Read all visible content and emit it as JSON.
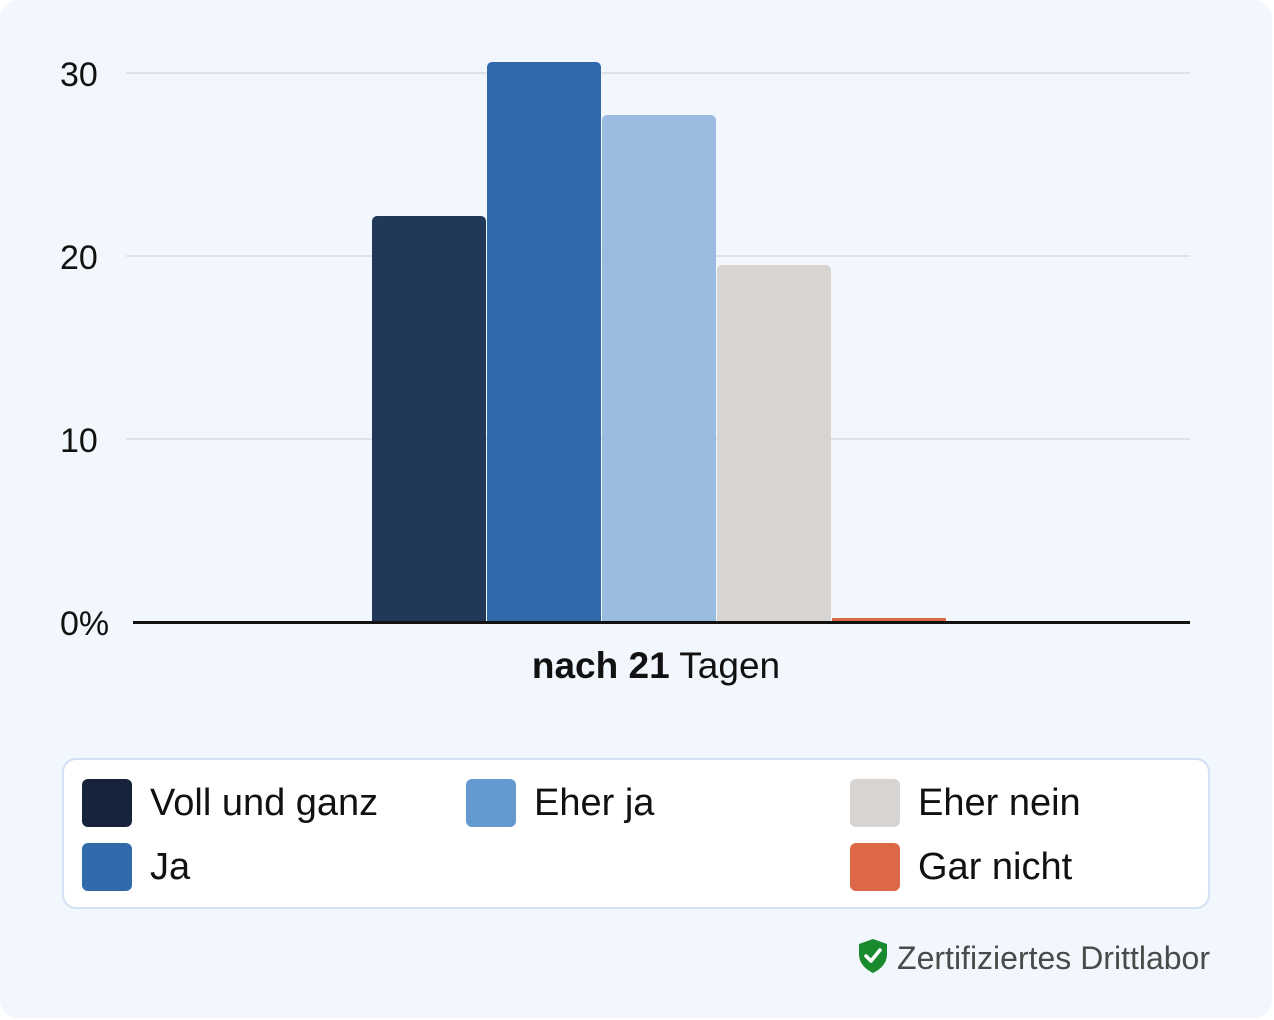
{
  "chart_data": {
    "type": "bar",
    "title": "",
    "categories": [
      "nach 21 Tagen"
    ],
    "xlabel": "nach 21 Tagen",
    "xlabel_parts": {
      "bold": "nach 21",
      "regular": "Tagen"
    },
    "ylabel": "",
    "ylim": [
      0,
      30
    ],
    "yticks": [
      "0%",
      "10",
      "20",
      "30"
    ],
    "grid": true,
    "legend_position": "bottom",
    "series": [
      {
        "name": "Voll und ganz",
        "values": [
          22.2
        ],
        "color": "#213858",
        "legend_color": "#16233b"
      },
      {
        "name": "Ja",
        "values": [
          30.6
        ],
        "color": "#316aab",
        "legend_color": "#316aab"
      },
      {
        "name": "Eher ja",
        "values": [
          27.7
        ],
        "color": "#9bbce1",
        "legend_color": "#6399cf"
      },
      {
        "name": "Eher nein",
        "values": [
          19.5
        ],
        "color": "#d7d4d1",
        "legend_color": "#d7d4d1"
      },
      {
        "name": "Gar nicht",
        "values": [
          0.2
        ],
        "color": "#dc6848",
        "legend_color": "#dc6848"
      }
    ]
  },
  "legend": {
    "items": [
      {
        "label": "Voll und ganz",
        "color": "#16233b"
      },
      {
        "label": "Ja",
        "color": "#316aab"
      },
      {
        "label": "Eher ja",
        "color": "#6399cf"
      },
      {
        "label": "Eher nein",
        "color": "#d7d4d1"
      },
      {
        "label": "Gar nicht",
        "color": "#dc6848"
      }
    ]
  },
  "footer": {
    "badge_icon": "shield-check-icon",
    "badge_color": "#1a8a2e",
    "text": "Zertifiziertes Drittlabor"
  }
}
